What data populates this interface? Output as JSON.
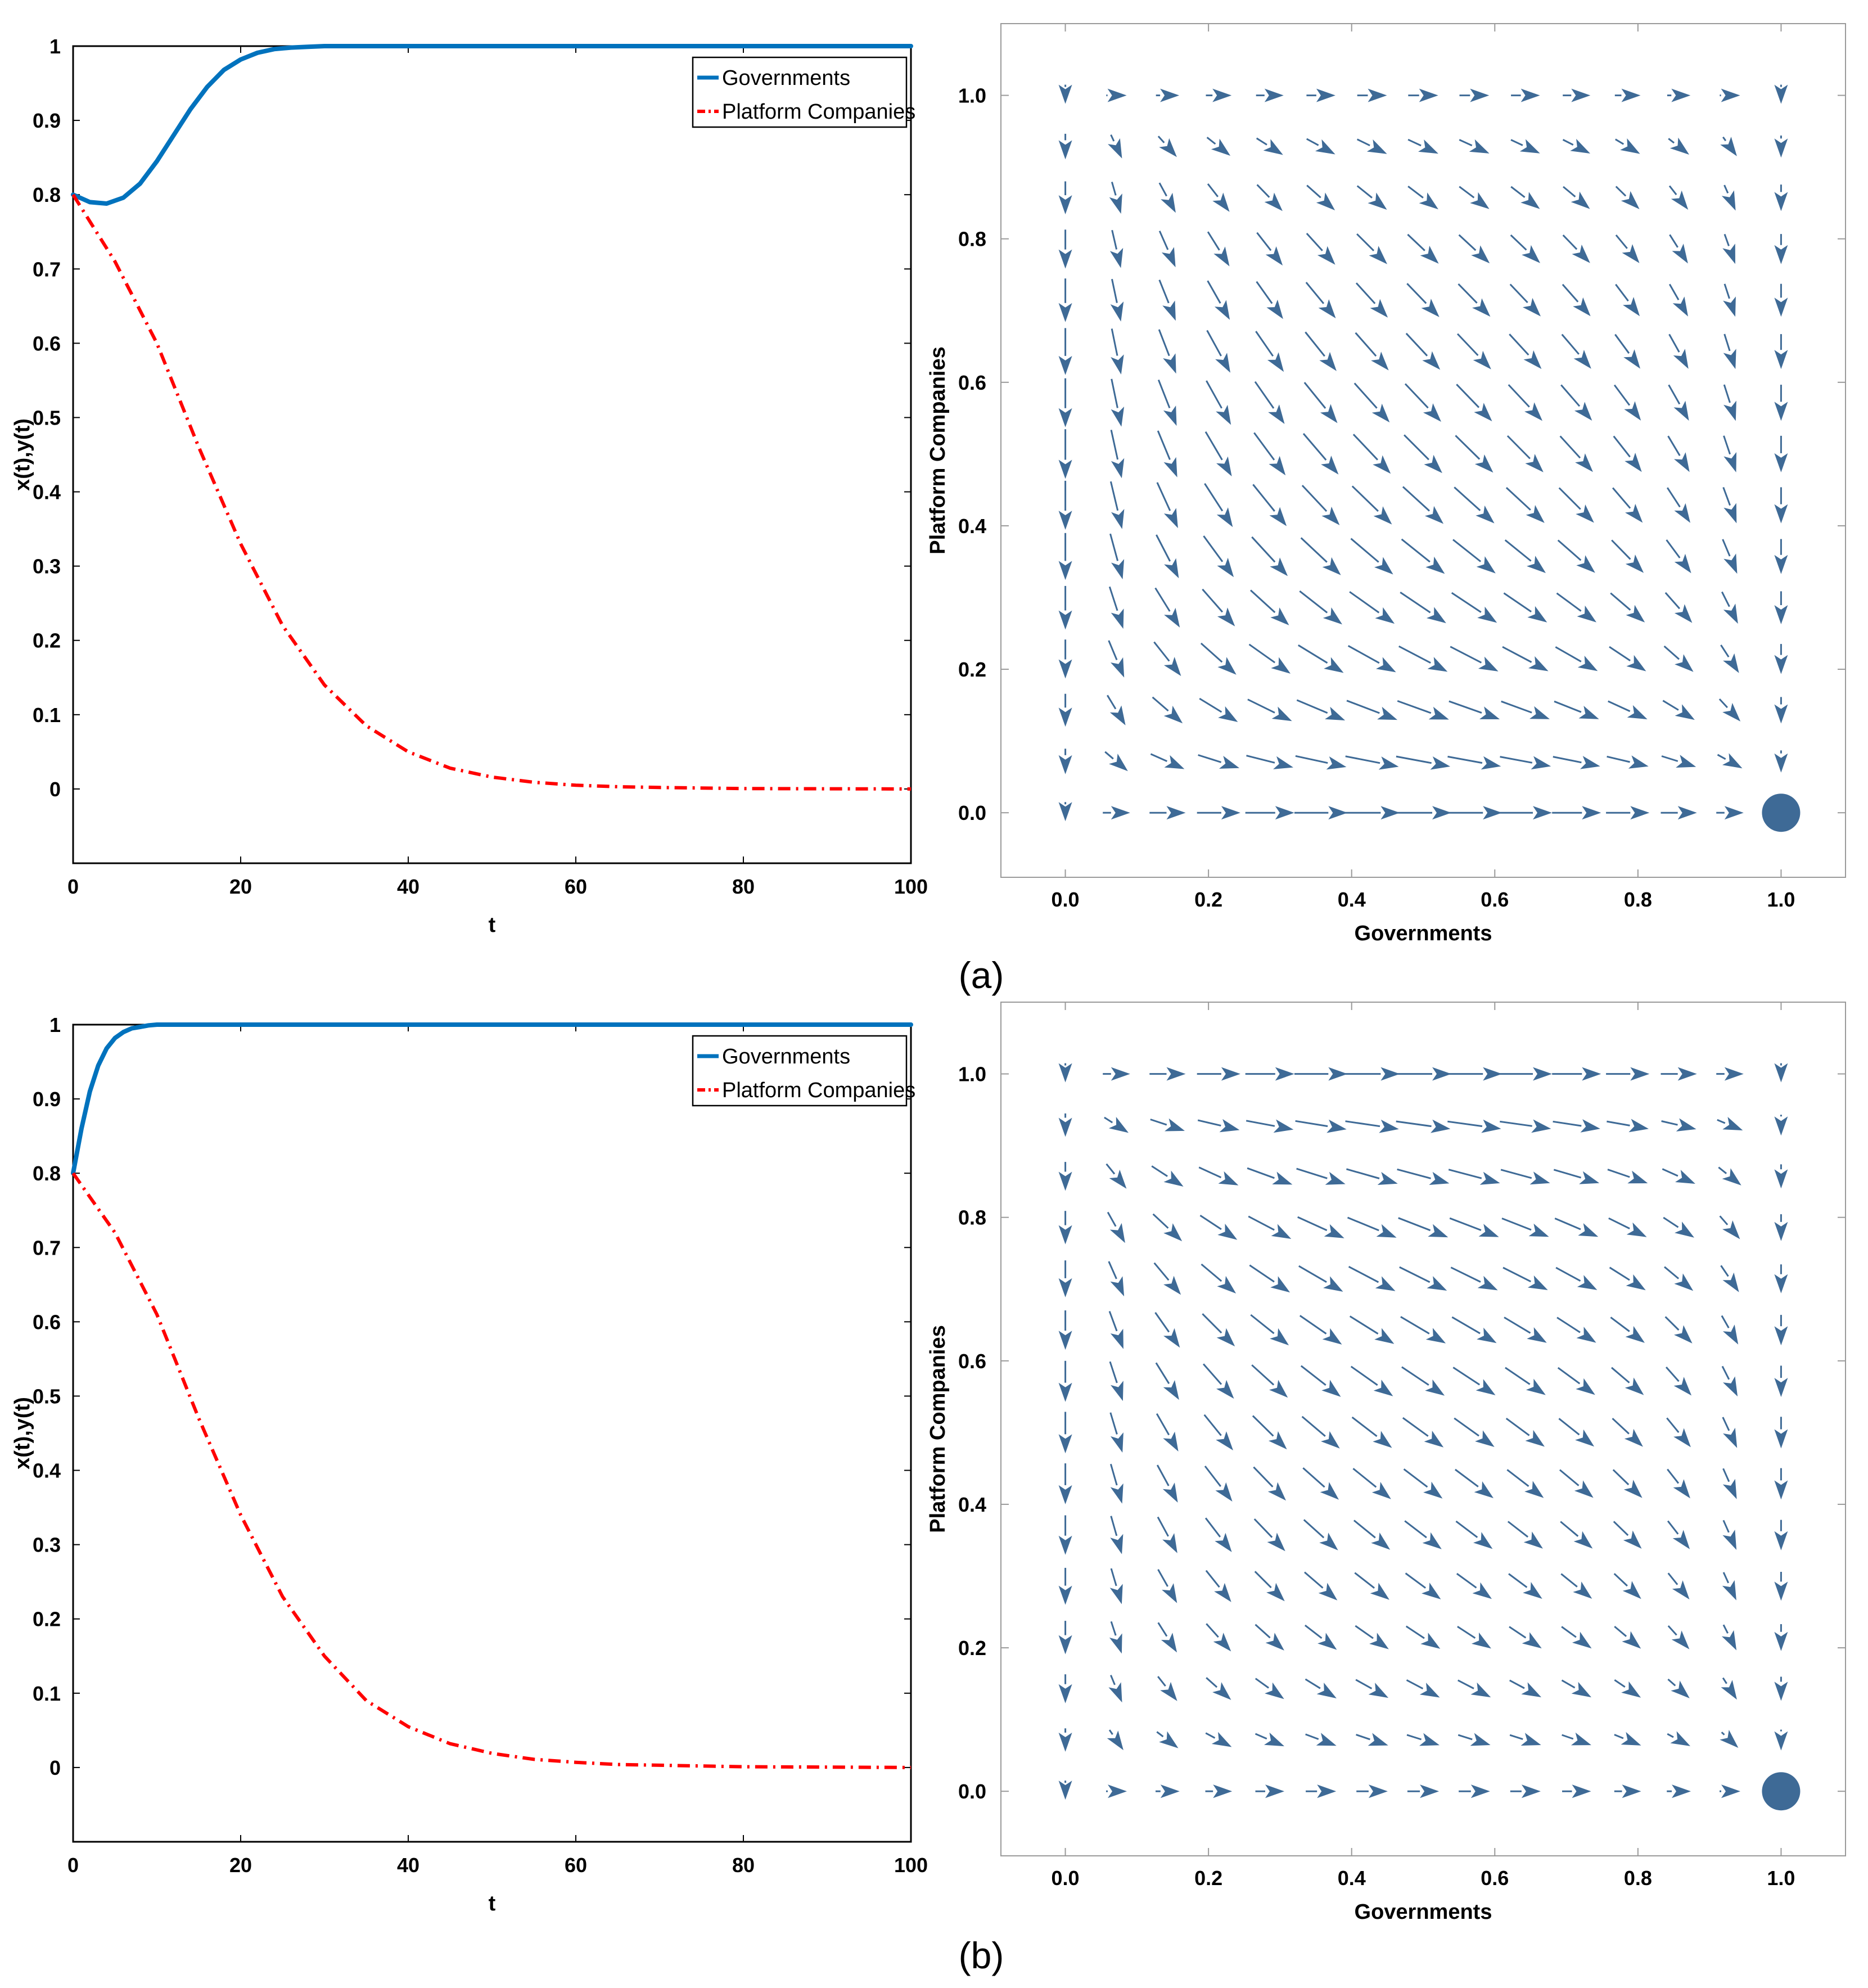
{
  "figure": {
    "panel_labels": [
      "(a)",
      "(b)"
    ]
  },
  "chart_data": [
    {
      "id": "a-time",
      "type": "line",
      "xlabel": "t",
      "ylabel": "x(t),y(t)",
      "xlim": [
        0,
        100
      ],
      "ylim": [
        -0.1,
        1
      ],
      "xticks": [
        "0",
        "20",
        "40",
        "60",
        "80",
        "100"
      ],
      "yticks": [
        "0",
        "0.1",
        "0.2",
        "0.3",
        "0.4",
        "0.5",
        "0.6",
        "0.7",
        "0.8",
        "0.9",
        "1"
      ],
      "legend_position": "top-right",
      "grid": false,
      "series": [
        {
          "name": "Governments",
          "color": "#0072BD",
          "style": "solid",
          "x": [
            0,
            2,
            4,
            6,
            8,
            10,
            12,
            14,
            16,
            18,
            20,
            22,
            24,
            26,
            28,
            30,
            35,
            40,
            50,
            60,
            80,
            100
          ],
          "y": [
            0.8,
            0.79,
            0.788,
            0.796,
            0.815,
            0.845,
            0.88,
            0.915,
            0.945,
            0.968,
            0.982,
            0.991,
            0.996,
            0.998,
            0.999,
            1.0,
            1.0,
            1.0,
            1.0,
            1.0,
            1.0,
            1.0
          ]
        },
        {
          "name": "Platform Companies",
          "color": "#FF0000",
          "style": "dashdot",
          "x": [
            0,
            5,
            10,
            15,
            20,
            25,
            30,
            35,
            40,
            45,
            50,
            55,
            60,
            65,
            70,
            80,
            90,
            100
          ],
          "y": [
            0.8,
            0.71,
            0.6,
            0.46,
            0.33,
            0.22,
            0.14,
            0.085,
            0.05,
            0.028,
            0.016,
            0.009,
            0.005,
            0.003,
            0.002,
            0.0005,
            0.0002,
            0.0
          ]
        }
      ]
    },
    {
      "id": "a-phase",
      "type": "scatter",
      "xlabel": "Governments",
      "ylabel": "Platform Companies",
      "xlim": [
        -0.09,
        1.09
      ],
      "ylim": [
        -0.09,
        1.1
      ],
      "xticks": [
        "0.0",
        "0.2",
        "0.4",
        "0.6",
        "0.8",
        "1.0"
      ],
      "yticks": [
        "0.0",
        "0.2",
        "0.4",
        "0.6",
        "0.8",
        "1.0"
      ],
      "arrow_color": "#3E6A96",
      "equilibrium": {
        "x": 1.0,
        "y": 0.0
      },
      "field_params": {
        "a": 0.6,
        "b": 0.4,
        "c": 0.2,
        "d": 1.0,
        "e": 0.5
      }
    },
    {
      "id": "b-time",
      "type": "line",
      "xlabel": "t",
      "ylabel": "x(t),y(t)",
      "xlim": [
        0,
        100
      ],
      "ylim": [
        -0.1,
        1
      ],
      "xticks": [
        "0",
        "20",
        "40",
        "60",
        "80",
        "100"
      ],
      "yticks": [
        "0",
        "0.1",
        "0.2",
        "0.3",
        "0.4",
        "0.5",
        "0.6",
        "0.7",
        "0.8",
        "0.9",
        "1"
      ],
      "legend_position": "top-right",
      "grid": false,
      "series": [
        {
          "name": "Governments",
          "color": "#0072BD",
          "style": "solid",
          "x": [
            0,
            1,
            2,
            3,
            4,
            5,
            6,
            7,
            8,
            9,
            10,
            12,
            15,
            20,
            30,
            50,
            100
          ],
          "y": [
            0.8,
            0.86,
            0.91,
            0.945,
            0.968,
            0.982,
            0.99,
            0.995,
            0.997,
            0.999,
            1.0,
            1.0,
            1.0,
            1.0,
            1.0,
            1.0,
            1.0
          ]
        },
        {
          "name": "Platform Companies",
          "color": "#FF0000",
          "style": "dashdot",
          "x": [
            0,
            5,
            10,
            15,
            20,
            25,
            30,
            35,
            40,
            45,
            50,
            55,
            60,
            65,
            70,
            80,
            90,
            100
          ],
          "y": [
            0.8,
            0.72,
            0.61,
            0.47,
            0.34,
            0.23,
            0.15,
            0.09,
            0.055,
            0.032,
            0.019,
            0.011,
            0.007,
            0.004,
            0.003,
            0.001,
            0.0005,
            0.0
          ]
        }
      ]
    },
    {
      "id": "b-phase",
      "type": "scatter",
      "xlabel": "Governments",
      "ylabel": "Platform Companies",
      "xlim": [
        -0.09,
        1.09
      ],
      "ylim": [
        -0.09,
        1.1
      ],
      "xticks": [
        "0.0",
        "0.2",
        "0.4",
        "0.6",
        "0.8",
        "1.0"
      ],
      "yticks": [
        "0.0",
        "0.2",
        "0.4",
        "0.6",
        "0.8",
        "1.0"
      ],
      "arrow_color": "#3E6A96",
      "equilibrium": {
        "x": 1.0,
        "y": 0.0
      },
      "field_params": {
        "a": 0.3,
        "b": -0.5,
        "c": 0.2,
        "d": 1.0,
        "e": 0.5
      }
    }
  ]
}
